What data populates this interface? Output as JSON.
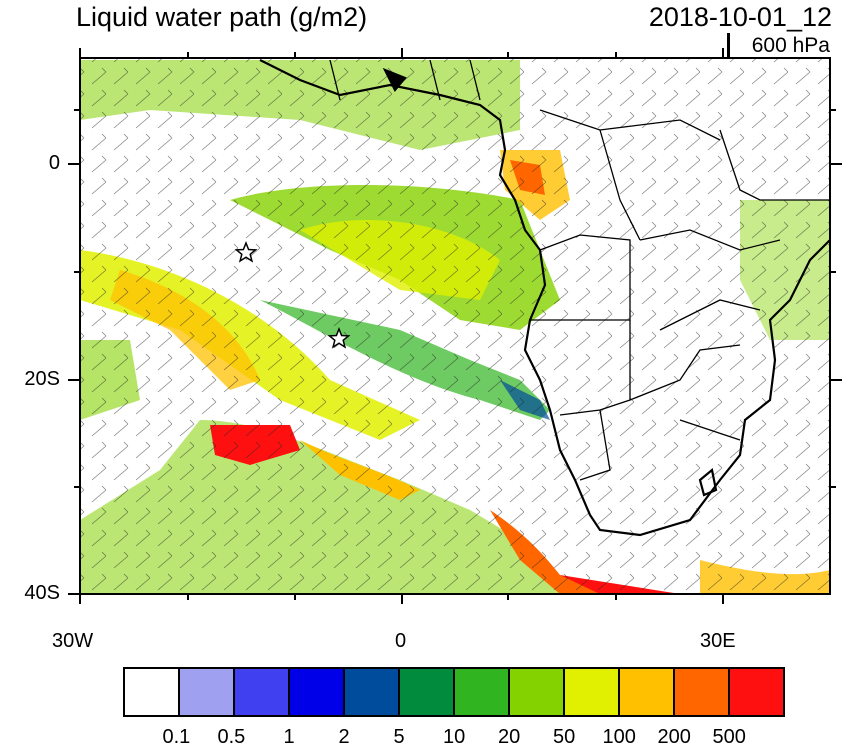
{
  "title": "Liquid water path (g/m2)",
  "datetime": "2018-10-01_12",
  "level": "600 hPa",
  "axes": {
    "y_labels": [
      "0",
      "20S",
      "40S"
    ],
    "x_labels": [
      "30W",
      "0",
      "30E"
    ]
  },
  "colorbar": {
    "labels": [
      "0.1",
      "0.5",
      "1",
      "2",
      "5",
      "10",
      "20",
      "50",
      "100",
      "200",
      "500"
    ],
    "colors": [
      "#ffffff",
      "#a0a0f0",
      "#4040f0",
      "#0000e8",
      "#004c9c",
      "#008c3c",
      "#30b420",
      "#84d200",
      "#e0f000",
      "#ffc000",
      "#ff6600",
      "#ff1010"
    ]
  },
  "markers": [
    "star",
    "star"
  ]
}
